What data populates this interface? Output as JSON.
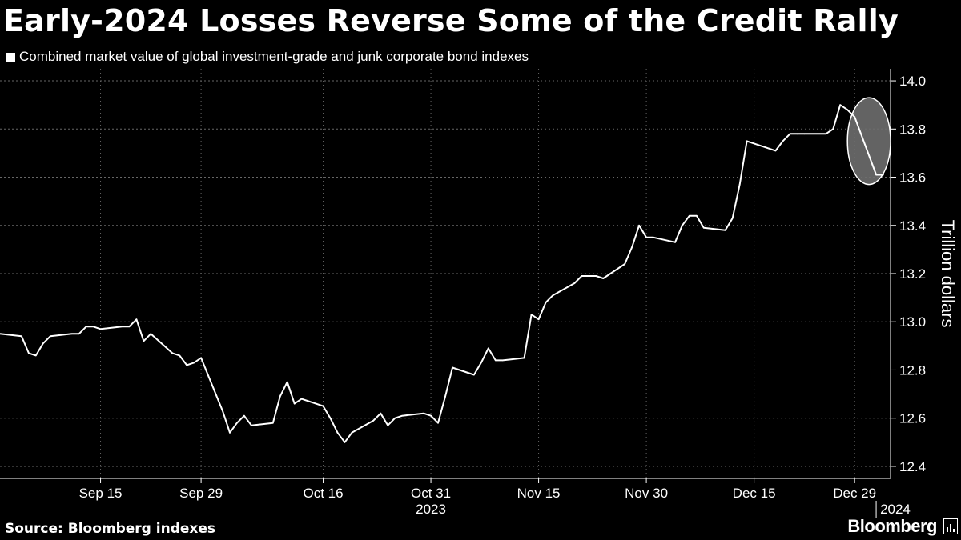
{
  "title": "Early-2024 Losses Reverse Some of the Credit Rally",
  "legend_label": "Combined market value of global investment-grade and junk corporate bond indexes",
  "source": "Source: Bloomberg indexes",
  "brand": "Bloomberg",
  "colors": {
    "background": "#000000",
    "line": "#ffffff",
    "grid": "#666666",
    "highlight": "#6e6e6e"
  },
  "chart_data": {
    "type": "line",
    "title": "Early-2024 Losses Reverse Some of the Credit Rally",
    "ylabel": "Trillion dollars",
    "ylim": [
      12.35,
      14.05
    ],
    "yticks": [
      12.4,
      12.6,
      12.8,
      13.0,
      13.2,
      13.4,
      13.6,
      13.8,
      14.0
    ],
    "ytick_labels": [
      "12.4",
      "12.6",
      "12.8",
      "13.0",
      "13.2",
      "13.4",
      "13.6",
      "13.8",
      "14.0"
    ],
    "xlim": [
      "2023-09-01",
      "2024-01-03"
    ],
    "xticks": [
      {
        "date": "2023-09-15",
        "label": "Sep 15"
      },
      {
        "date": "2023-09-29",
        "label": "Sep 29"
      },
      {
        "date": "2023-10-16",
        "label": "Oct 16"
      },
      {
        "date": "2023-10-31",
        "label": "Oct 31"
      },
      {
        "date": "2023-11-15",
        "label": "Nov 15"
      },
      {
        "date": "2023-11-30",
        "label": "Nov 30"
      },
      {
        "date": "2023-12-15",
        "label": "Dec 15"
      },
      {
        "date": "2023-12-29",
        "label": "Dec 29"
      }
    ],
    "year_labels": [
      {
        "date": "2023-10-31",
        "label": "2023"
      },
      {
        "date": "2024-01-01",
        "label": "2024"
      }
    ],
    "legend_placement": "top-left",
    "grid": true,
    "highlight": {
      "x_from": "2023-12-28",
      "x_to": "2024-01-03",
      "y_from": 13.57,
      "y_to": 13.93
    },
    "series": [
      {
        "name": "Combined market value of global investment-grade and junk corporate bond indexes",
        "x": [
          "2023-09-01",
          "2023-09-04",
          "2023-09-05",
          "2023-09-06",
          "2023-09-07",
          "2023-09-08",
          "2023-09-11",
          "2023-09-12",
          "2023-09-13",
          "2023-09-14",
          "2023-09-15",
          "2023-09-18",
          "2023-09-19",
          "2023-09-20",
          "2023-09-21",
          "2023-09-22",
          "2023-09-25",
          "2023-09-26",
          "2023-09-27",
          "2023-09-28",
          "2023-09-29",
          "2023-10-02",
          "2023-10-03",
          "2023-10-04",
          "2023-10-05",
          "2023-10-06",
          "2023-10-09",
          "2023-10-10",
          "2023-10-11",
          "2023-10-12",
          "2023-10-13",
          "2023-10-16",
          "2023-10-17",
          "2023-10-18",
          "2023-10-19",
          "2023-10-20",
          "2023-10-23",
          "2023-10-24",
          "2023-10-25",
          "2023-10-26",
          "2023-10-27",
          "2023-10-30",
          "2023-10-31",
          "2023-11-01",
          "2023-11-02",
          "2023-11-03",
          "2023-11-06",
          "2023-11-07",
          "2023-11-08",
          "2023-11-09",
          "2023-11-10",
          "2023-11-13",
          "2023-11-14",
          "2023-11-15",
          "2023-11-16",
          "2023-11-17",
          "2023-11-20",
          "2023-11-21",
          "2023-11-22",
          "2023-11-23",
          "2023-11-24",
          "2023-11-27",
          "2023-11-28",
          "2023-11-29",
          "2023-11-30",
          "2023-12-01",
          "2023-12-04",
          "2023-12-05",
          "2023-12-06",
          "2023-12-07",
          "2023-12-08",
          "2023-12-11",
          "2023-12-12",
          "2023-12-13",
          "2023-12-14",
          "2023-12-15",
          "2023-12-18",
          "2023-12-19",
          "2023-12-20",
          "2023-12-21",
          "2023-12-22",
          "2023-12-25",
          "2023-12-26",
          "2023-12-27",
          "2023-12-28",
          "2023-12-29",
          "2024-01-01",
          "2024-01-02"
        ],
        "y": [
          12.95,
          12.94,
          12.87,
          12.86,
          12.91,
          12.94,
          12.95,
          12.95,
          12.98,
          12.98,
          12.97,
          12.98,
          12.98,
          13.01,
          12.92,
          12.95,
          12.87,
          12.86,
          12.82,
          12.83,
          12.85,
          12.63,
          12.54,
          12.58,
          12.61,
          12.57,
          12.58,
          12.69,
          12.75,
          12.66,
          12.68,
          12.65,
          12.6,
          12.54,
          12.5,
          12.54,
          12.59,
          12.62,
          12.57,
          12.6,
          12.61,
          12.62,
          12.61,
          12.58,
          12.69,
          12.81,
          12.78,
          12.83,
          12.89,
          12.84,
          12.84,
          12.85,
          13.03,
          13.01,
          13.08,
          13.11,
          13.16,
          13.19,
          13.19,
          13.19,
          13.18,
          13.24,
          13.31,
          13.4,
          13.35,
          13.35,
          13.33,
          13.4,
          13.44,
          13.44,
          13.39,
          13.38,
          13.43,
          13.57,
          13.75,
          13.74,
          13.71,
          13.75,
          13.78,
          13.78,
          13.78,
          13.78,
          13.8,
          13.9,
          13.88,
          13.85,
          13.61,
          13.61
        ]
      }
    ]
  }
}
